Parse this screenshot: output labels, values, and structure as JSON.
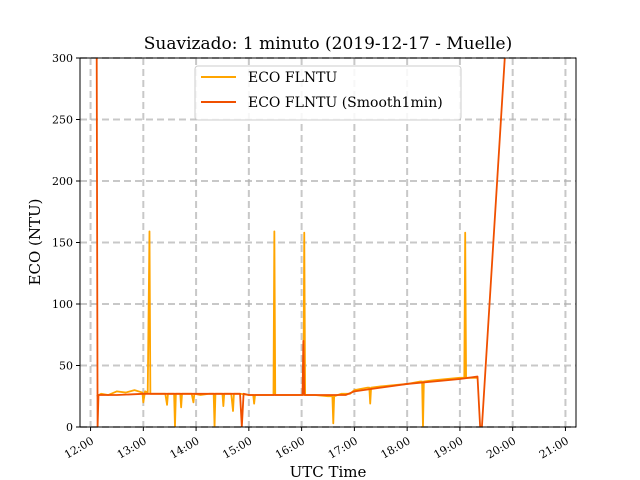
{
  "chart_data": {
    "type": "line",
    "title": "Suavizado: 1 minuto (2019-12-17 - Muelle)",
    "xlabel": "UTC Time",
    "ylabel": "ECO (NTU)",
    "xlim": [
      "11:48",
      "21:12"
    ],
    "ylim": [
      0,
      300
    ],
    "x_ticks": [
      "12:00",
      "13:00",
      "14:00",
      "15:00",
      "16:00",
      "17:00",
      "18:00",
      "19:00",
      "20:00",
      "21:00"
    ],
    "y_ticks": [
      0,
      50,
      100,
      150,
      200,
      250,
      300
    ],
    "grid": true,
    "legend_position": "top-center",
    "series": [
      {
        "name": "ECO FLNTU",
        "color": "#ffa500",
        "points": [
          [
            "12:07",
            25
          ],
          [
            "12:12",
            27
          ],
          [
            "12:20",
            26
          ],
          [
            "12:30",
            29
          ],
          [
            "12:40",
            28
          ],
          [
            "12:50",
            30
          ],
          [
            "12:59",
            28
          ],
          [
            "13:00",
            20
          ],
          [
            "13:02",
            29
          ],
          [
            "13:05",
            28
          ],
          [
            "13:07",
            159
          ],
          [
            "13:08",
            27
          ],
          [
            "13:15",
            27
          ],
          [
            "13:25",
            27
          ],
          [
            "13:27",
            18
          ],
          [
            "13:28",
            27
          ],
          [
            "13:35",
            27
          ],
          [
            "13:36",
            0
          ],
          [
            "13:37",
            27
          ],
          [
            "13:42",
            27
          ],
          [
            "13:43",
            16
          ],
          [
            "13:44",
            27
          ],
          [
            "13:55",
            27
          ],
          [
            "13:57",
            20
          ],
          [
            "13:58",
            27
          ],
          [
            "14:05",
            26
          ],
          [
            "14:15",
            27
          ],
          [
            "14:20",
            27
          ],
          [
            "14:21",
            0
          ],
          [
            "14:22",
            27
          ],
          [
            "14:30",
            27
          ],
          [
            "14:31",
            17
          ],
          [
            "14:32",
            27
          ],
          [
            "14:40",
            27
          ],
          [
            "14:42",
            13
          ],
          [
            "14:43",
            27
          ],
          [
            "14:50",
            27
          ],
          [
            "15:00",
            26
          ],
          [
            "15:05",
            26
          ],
          [
            "15:06",
            19
          ],
          [
            "15:07",
            26
          ],
          [
            "15:15",
            26
          ],
          [
            "15:25",
            26
          ],
          [
            "15:28",
            26
          ],
          [
            "15:29",
            159
          ],
          [
            "15:30",
            26
          ],
          [
            "15:45",
            26
          ],
          [
            "16:00",
            26
          ],
          [
            "16:02",
            26
          ],
          [
            "16:03",
            158
          ],
          [
            "16:04",
            26
          ],
          [
            "16:15",
            26
          ],
          [
            "16:30",
            25
          ],
          [
            "16:35",
            25
          ],
          [
            "16:36",
            3
          ],
          [
            "16:37",
            25
          ],
          [
            "16:45",
            27
          ],
          [
            "16:55",
            27
          ],
          [
            "17:00",
            30
          ],
          [
            "17:15",
            32
          ],
          [
            "17:17",
            32
          ],
          [
            "17:18",
            19
          ],
          [
            "17:19",
            32
          ],
          [
            "17:30",
            33
          ],
          [
            "17:45",
            34
          ],
          [
            "18:00",
            35
          ],
          [
            "18:15",
            37
          ],
          [
            "18:17",
            37
          ],
          [
            "18:18",
            0
          ],
          [
            "18:19",
            37
          ],
          [
            "18:30",
            38
          ],
          [
            "18:45",
            39
          ],
          [
            "19:00",
            40
          ],
          [
            "19:05",
            40
          ],
          [
            "19:06",
            158
          ],
          [
            "19:07",
            40
          ],
          [
            "19:15",
            40
          ],
          [
            "19:20",
            40
          ]
        ]
      },
      {
        "name": "ECO FLNTU (Smooth1min)",
        "color": "#f05000",
        "points": [
          [
            "12:07",
            300
          ],
          [
            "12:08",
            0
          ],
          [
            "12:09",
            26
          ],
          [
            "12:30",
            26
          ],
          [
            "13:00",
            27
          ],
          [
            "13:30",
            27
          ],
          [
            "14:00",
            27
          ],
          [
            "14:30",
            27
          ],
          [
            "14:50",
            27
          ],
          [
            "14:52",
            0
          ],
          [
            "14:54",
            27
          ],
          [
            "15:00",
            26
          ],
          [
            "15:30",
            26
          ],
          [
            "16:00",
            26
          ],
          [
            "16:01",
            26
          ],
          [
            "16:02",
            70
          ],
          [
            "16:03",
            26
          ],
          [
            "16:30",
            26
          ],
          [
            "16:50",
            26
          ],
          [
            "17:00",
            29
          ],
          [
            "17:30",
            32
          ],
          [
            "18:00",
            35
          ],
          [
            "18:30",
            37
          ],
          [
            "19:00",
            39
          ],
          [
            "19:20",
            41
          ],
          [
            "19:23",
            0
          ],
          [
            "19:25",
            0
          ],
          [
            "19:51",
            300
          ]
        ]
      }
    ]
  }
}
